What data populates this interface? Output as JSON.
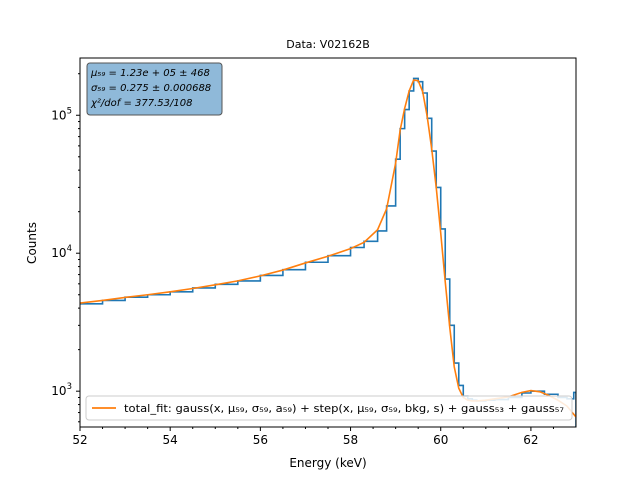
{
  "chart_data": {
    "type": "line",
    "title": "Data: V02162B",
    "xlabel": "Energy (keV)",
    "ylabel": "Counts",
    "yscale": "log",
    "xlim": [
      52,
      63
    ],
    "ylim": [
      550,
      260000
    ],
    "grid": false,
    "x_ticks": [
      52,
      54,
      56,
      58,
      60,
      62
    ],
    "y_ticks": [
      {
        "value": 1000,
        "base": "10",
        "exp": "3"
      },
      {
        "value": 10000,
        "base": "10",
        "exp": "4"
      },
      {
        "value": 100000,
        "base": "10",
        "exp": "5"
      }
    ],
    "stats_box": {
      "lines": [
        "μ₅₉ = 1.23e + 05 ± 468",
        "σ₅₉ = 0.275 ± 0.000688",
        "χ²/dof = 377.53/108"
      ],
      "placement": "top-left",
      "facecolor": "#8fb9d9"
    },
    "legend": {
      "placement": "bottom",
      "entries": [
        {
          "label": "total_fit: gauss(x, μ₅₉, σ₅₉, a₅₉) + step(x, μ₅₉, σ₅₉, bkg, s) + gauss₅₃ + gauss₅₇",
          "color": "#ff7f0e"
        }
      ]
    },
    "series": [
      {
        "kind": "histogram",
        "color": "#1f77b4",
        "x": [
          52.0,
          52.5,
          53.0,
          53.5,
          54.0,
          54.5,
          55.0,
          55.5,
          56.0,
          56.5,
          57.0,
          57.5,
          58.0,
          58.3,
          58.6,
          58.8,
          59.0,
          59.1,
          59.2,
          59.3,
          59.4,
          59.5,
          59.6,
          59.7,
          59.8,
          59.9,
          60.0,
          60.1,
          60.2,
          60.3,
          60.4,
          60.5,
          60.6,
          60.7,
          60.8,
          61.0,
          61.2,
          61.5,
          61.8,
          62.0,
          62.3,
          62.6,
          62.8,
          62.95
        ],
        "y": [
          4300,
          4550,
          4800,
          5000,
          5250,
          5600,
          5950,
          6300,
          6900,
          7600,
          8600,
          9600,
          11000,
          12200,
          14500,
          22000,
          48000,
          80000,
          110000,
          150000,
          185000,
          175000,
          145000,
          95000,
          55000,
          30000,
          15000,
          6500,
          3000,
          1600,
          1100,
          920,
          880,
          860,
          850,
          860,
          870,
          900,
          970,
          1000,
          950,
          900,
          880,
          980
        ]
      },
      {
        "name": "total_fit",
        "color": "#ff7f0e",
        "x": [
          52.0,
          52.5,
          53.0,
          53.5,
          54.0,
          54.5,
          55.0,
          55.5,
          56.0,
          56.5,
          57.0,
          57.5,
          58.0,
          58.3,
          58.6,
          58.8,
          59.0,
          59.1,
          59.2,
          59.3,
          59.4,
          59.5,
          59.6,
          59.7,
          59.8,
          59.9,
          60.0,
          60.1,
          60.2,
          60.3,
          60.4,
          60.5,
          60.6,
          60.7,
          60.8,
          61.0,
          61.2,
          61.5,
          61.8,
          62.0,
          62.2,
          62.4,
          62.6,
          62.8,
          63.0
        ],
        "y": [
          4350,
          4550,
          4780,
          5000,
          5250,
          5550,
          5900,
          6300,
          6850,
          7550,
          8500,
          9500,
          10800,
          12000,
          14800,
          21000,
          45000,
          78000,
          112000,
          150000,
          180000,
          178000,
          148000,
          98000,
          57000,
          30000,
          14000,
          6200,
          2900,
          1500,
          1050,
          900,
          860,
          850,
          850,
          860,
          880,
          910,
          980,
          1010,
          990,
          930,
          860,
          780,
          650
        ]
      }
    ]
  }
}
